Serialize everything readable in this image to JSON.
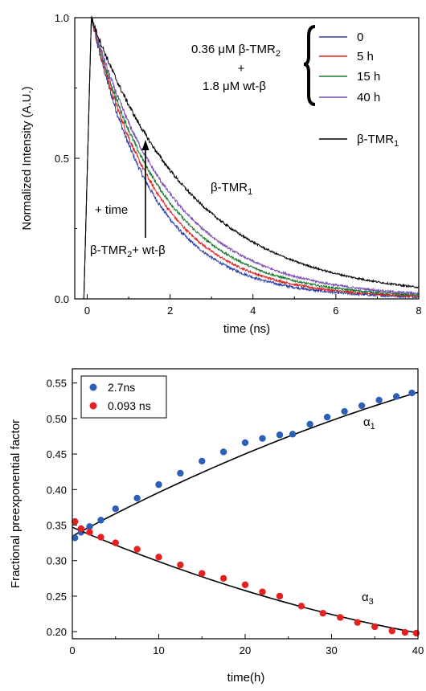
{
  "chart_data": [
    {
      "type": "line",
      "xlabel": "time (ns)",
      "ylabel": "Normalized Intensity (A.U.)",
      "xlim": [
        -0.3,
        8
      ],
      "ylim": [
        0,
        1
      ],
      "x_ticks": [
        0,
        2,
        4,
        6,
        8
      ],
      "y_ticks": [
        0.0,
        0.5,
        1.0
      ],
      "x_tick_labels": [
        "0",
        "2",
        "4",
        "6",
        "8"
      ],
      "y_tick_labels": [
        "0.0",
        "0.5",
        "1.0"
      ],
      "grid": false,
      "legend_position": "top-right",
      "legend_group_label": {
        "line1_prefix": "0.36 ",
        "mu": "μ",
        "line1_suffix": "M β-TMR",
        "line1_sub": "2",
        "plus": "+",
        "line2_prefix": "1.8 ",
        "line2_suffix": "M wt-β"
      },
      "series": [
        {
          "name": "0",
          "color": "#2b3fa8",
          "tau": 1.5,
          "noise": 0.013
        },
        {
          "name": "5 h",
          "color": "#e0201d",
          "tau": 1.62,
          "noise": 0.011
        },
        {
          "name": "15 h",
          "color": "#1a7a30",
          "tau": 1.76,
          "noise": 0.011
        },
        {
          "name": "40 h",
          "color": "#7a4fb0",
          "tau": 1.92,
          "noise": 0.011
        },
        {
          "name": "β-TMR",
          "name_sub": "1",
          "color": "#000000",
          "tau": 2.42,
          "noise": 0.009
        }
      ],
      "annotations": {
        "tmr1_label": "β-TMR",
        "tmr1_sub": "1",
        "time_label": "+ time",
        "mix_label_a": "β-TMR",
        "mix_sub": "2",
        "mix_label_b": "+ wt-β"
      }
    },
    {
      "type": "scatter",
      "xlabel": "time(h)",
      "ylabel": "Fractional preexponential factor",
      "xlim": [
        0,
        40
      ],
      "ylim": [
        0.19,
        0.57
      ],
      "x_ticks": [
        0,
        10,
        20,
        30,
        40
      ],
      "y_ticks": [
        0.2,
        0.25,
        0.3,
        0.35,
        0.4,
        0.45,
        0.5,
        0.55
      ],
      "x_tick_labels": [
        "0",
        "10",
        "20",
        "30",
        "40"
      ],
      "y_tick_labels": [
        "0.20",
        "0.25",
        "0.30",
        "0.35",
        "0.40",
        "0.45",
        "0.50",
        "0.55"
      ],
      "grid": false,
      "legend_position": "top-left",
      "series": [
        {
          "name": "2.7ns",
          "color": "#2e5fb8",
          "curve_label": "α",
          "curve_sub": "1",
          "x": [
            0.3,
            1.0,
            2.0,
            3.3,
            5.0,
            7.5,
            10.0,
            12.5,
            15.0,
            17.5,
            20.0,
            22.0,
            24.0,
            25.5,
            27.5,
            29.5,
            31.5,
            33.5,
            35.5,
            37.5,
            39.3
          ],
          "y": [
            0.332,
            0.34,
            0.348,
            0.357,
            0.373,
            0.388,
            0.407,
            0.423,
            0.44,
            0.453,
            0.466,
            0.472,
            0.477,
            0.478,
            0.492,
            0.502,
            0.51,
            0.518,
            0.526,
            0.531,
            0.536
          ],
          "fit": {
            "a": 0.3345,
            "b": 0.0065,
            "c": -3.6e-05
          }
        },
        {
          "name": "0.093 ns",
          "color": "#e52020",
          "curve_label": "α",
          "curve_sub": "3",
          "x": [
            0.3,
            1.0,
            2.0,
            3.3,
            5.0,
            7.5,
            10.0,
            12.5,
            15.0,
            17.5,
            20.0,
            22.0,
            24.0,
            26.5,
            29.0,
            31.0,
            33.0,
            35.0,
            37.0,
            38.5,
            39.8
          ],
          "y": [
            0.355,
            0.345,
            0.34,
            0.333,
            0.325,
            0.316,
            0.305,
            0.294,
            0.282,
            0.275,
            0.266,
            0.256,
            0.25,
            0.236,
            0.226,
            0.22,
            0.213,
            0.207,
            0.201,
            0.199,
            0.198
          ],
          "fit": {
            "a": 0.347,
            "b": -0.0052,
            "c": 3.7e-05
          }
        }
      ]
    }
  ]
}
